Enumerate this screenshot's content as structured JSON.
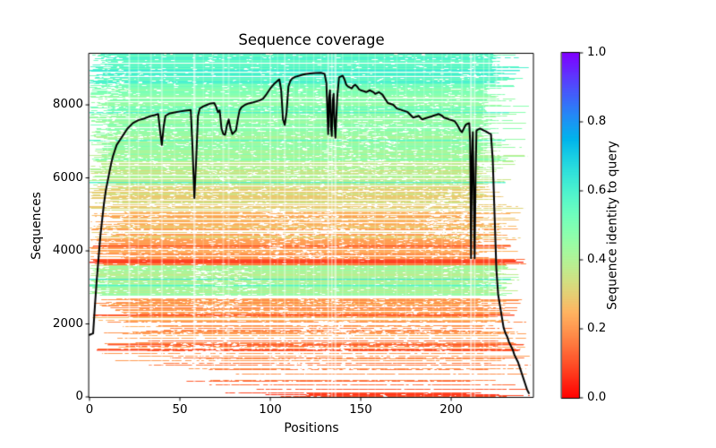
{
  "title": "Sequence coverage",
  "xlabel": "Positions",
  "ylabel": "Sequences",
  "colorbar_label": "Sequence identity to query",
  "chart_data": {
    "type": "line",
    "title": "Sequence coverage",
    "xlabel": "Positions",
    "ylabel": "Sequences",
    "xlim": [
      0,
      245
    ],
    "ylim": [
      0,
      9400
    ],
    "grid": false,
    "x_ticks": [
      {
        "v": 0,
        "label": "0"
      },
      {
        "v": 50,
        "label": "50"
      },
      {
        "v": 100,
        "label": "100"
      },
      {
        "v": 150,
        "label": "150"
      },
      {
        "v": 200,
        "label": "200"
      }
    ],
    "y_ticks": [
      {
        "v": 0,
        "label": "0"
      },
      {
        "v": 2000,
        "label": "2000"
      },
      {
        "v": 4000,
        "label": "4000"
      },
      {
        "v": 6000,
        "label": "6000"
      },
      {
        "v": 8000,
        "label": "8000"
      }
    ],
    "colorbar": {
      "label": "Sequence identity to query",
      "min": 0.0,
      "max": 1.0,
      "ticks": [
        {
          "v": 0.0,
          "label": "0.0"
        },
        {
          "v": 0.2,
          "label": "0.2"
        },
        {
          "v": 0.4,
          "label": "0.4"
        },
        {
          "v": 0.6,
          "label": "0.6"
        },
        {
          "v": 0.8,
          "label": "0.8"
        },
        {
          "v": 1.0,
          "label": "1.0"
        }
      ],
      "colormap": "rainbow_r",
      "anchor_colors": {
        "0.0": "#ff0000",
        "0.2": "#ffa255",
        "0.4": "#a8f79c",
        "0.6": "#57f7c9",
        "0.8": "#1a96f3",
        "1.0": "#8000ff"
      }
    },
    "coverage_line": {
      "name": "coverage",
      "color": "#000000",
      "line_width": 2,
      "points": [
        [
          0,
          1700
        ],
        [
          1,
          1720
        ],
        [
          2,
          1740
        ],
        [
          3,
          2500
        ],
        [
          4,
          3200
        ],
        [
          5,
          3800
        ],
        [
          6,
          4400
        ],
        [
          7,
          4850
        ],
        [
          8,
          5300
        ],
        [
          9,
          5650
        ],
        [
          10,
          5900
        ],
        [
          11,
          6150
        ],
        [
          12,
          6400
        ],
        [
          13,
          6600
        ],
        [
          14,
          6750
        ],
        [
          15,
          6900
        ],
        [
          17,
          7050
        ],
        [
          19,
          7200
        ],
        [
          21,
          7350
        ],
        [
          24,
          7500
        ],
        [
          27,
          7580
        ],
        [
          30,
          7620
        ],
        [
          33,
          7680
        ],
        [
          36,
          7720
        ],
        [
          38,
          7750
        ],
        [
          39,
          7300
        ],
        [
          40,
          6900
        ],
        [
          41,
          7400
        ],
        [
          42,
          7700
        ],
        [
          44,
          7760
        ],
        [
          47,
          7790
        ],
        [
          50,
          7820
        ],
        [
          53,
          7840
        ],
        [
          56,
          7860
        ],
        [
          57,
          6800
        ],
        [
          58,
          5450
        ],
        [
          59,
          6500
        ],
        [
          60,
          7700
        ],
        [
          61,
          7900
        ],
        [
          63,
          7960
        ],
        [
          65,
          8000
        ],
        [
          67,
          8040
        ],
        [
          69,
          8050
        ],
        [
          70,
          7950
        ],
        [
          71,
          7800
        ],
        [
          72,
          7850
        ],
        [
          73,
          7350
        ],
        [
          74,
          7200
        ],
        [
          75,
          7180
        ],
        [
          76,
          7440
        ],
        [
          77,
          7600
        ],
        [
          78,
          7350
        ],
        [
          79,
          7200
        ],
        [
          80,
          7250
        ],
        [
          81,
          7300
        ],
        [
          82,
          7600
        ],
        [
          83,
          7850
        ],
        [
          84,
          7930
        ],
        [
          86,
          8000
        ],
        [
          88,
          8040
        ],
        [
          90,
          8060
        ],
        [
          92,
          8090
        ],
        [
          94,
          8120
        ],
        [
          96,
          8170
        ],
        [
          98,
          8300
        ],
        [
          100,
          8450
        ],
        [
          102,
          8570
        ],
        [
          104,
          8660
        ],
        [
          105,
          8700
        ],
        [
          106,
          8400
        ],
        [
          107,
          7600
        ],
        [
          108,
          7450
        ],
        [
          109,
          7800
        ],
        [
          110,
          8500
        ],
        [
          111,
          8650
        ],
        [
          112,
          8720
        ],
        [
          114,
          8770
        ],
        [
          116,
          8800
        ],
        [
          118,
          8830
        ],
        [
          120,
          8850
        ],
        [
          122,
          8860
        ],
        [
          125,
          8875
        ],
        [
          128,
          8880
        ],
        [
          130,
          8850
        ],
        [
          131,
          8600
        ],
        [
          132,
          7200
        ],
        [
          132.5,
          8200
        ],
        [
          133,
          8400
        ],
        [
          133.5,
          7400
        ],
        [
          134,
          7150
        ],
        [
          134.5,
          8100
        ],
        [
          135,
          8300
        ],
        [
          135.5,
          7500
        ],
        [
          136,
          7100
        ],
        [
          137,
          8200
        ],
        [
          138,
          8750
        ],
        [
          140,
          8800
        ],
        [
          141,
          8700
        ],
        [
          142,
          8550
        ],
        [
          143,
          8500
        ],
        [
          144,
          8480
        ],
        [
          145,
          8450
        ],
        [
          146,
          8520
        ],
        [
          147,
          8550
        ],
        [
          148,
          8500
        ],
        [
          149,
          8430
        ],
        [
          150,
          8400
        ],
        [
          152,
          8370
        ],
        [
          153,
          8350
        ],
        [
          155,
          8400
        ],
        [
          157,
          8350
        ],
        [
          158,
          8300
        ],
        [
          160,
          8350
        ],
        [
          162,
          8280
        ],
        [
          163,
          8200
        ],
        [
          165,
          8050
        ],
        [
          167,
          8020
        ],
        [
          168,
          8000
        ],
        [
          169,
          7950
        ],
        [
          170,
          7900
        ],
        [
          172,
          7870
        ],
        [
          173,
          7850
        ],
        [
          175,
          7820
        ],
        [
          176,
          7800
        ],
        [
          178,
          7700
        ],
        [
          179,
          7650
        ],
        [
          181,
          7680
        ],
        [
          182,
          7700
        ],
        [
          184,
          7600
        ],
        [
          185,
          7620
        ],
        [
          187,
          7650
        ],
        [
          189,
          7680
        ],
        [
          190,
          7700
        ],
        [
          192,
          7730
        ],
        [
          193,
          7750
        ],
        [
          195,
          7700
        ],
        [
          196,
          7650
        ],
        [
          198,
          7620
        ],
        [
          199,
          7600
        ],
        [
          201,
          7570
        ],
        [
          202,
          7550
        ],
        [
          203,
          7480
        ],
        [
          204,
          7400
        ],
        [
          205,
          7300
        ],
        [
          206,
          7250
        ],
        [
          207,
          7350
        ],
        [
          208,
          7450
        ],
        [
          209,
          7480
        ],
        [
          210,
          7500
        ],
        [
          210.5,
          7000
        ],
        [
          211,
          3800
        ],
        [
          211.5,
          6500
        ],
        [
          212,
          7250
        ],
        [
          212.5,
          5500
        ],
        [
          213,
          3800
        ],
        [
          213.5,
          6000
        ],
        [
          214,
          7300
        ],
        [
          215,
          7330
        ],
        [
          216,
          7350
        ],
        [
          217,
          7330
        ],
        [
          218,
          7300
        ],
        [
          219,
          7280
        ],
        [
          220,
          7250
        ],
        [
          221,
          7220
        ],
        [
          222,
          7200
        ],
        [
          223,
          6500
        ],
        [
          224,
          5000
        ],
        [
          225,
          3500
        ],
        [
          226,
          2800
        ],
        [
          227,
          2500
        ],
        [
          228,
          2200
        ],
        [
          229,
          1900
        ],
        [
          230,
          1750
        ],
        [
          231,
          1650
        ],
        [
          232,
          1500
        ],
        [
          233,
          1400
        ],
        [
          234,
          1300
        ],
        [
          235,
          1150
        ],
        [
          236,
          1050
        ],
        [
          237,
          950
        ],
        [
          238,
          800
        ],
        [
          239,
          650
        ],
        [
          240,
          500
        ],
        [
          241,
          350
        ],
        [
          242,
          200
        ],
        [
          243,
          100
        ]
      ]
    },
    "msa_bands": [
      {
        "v0": 0,
        "v1": 120,
        "id0": 0.05,
        "id1": 0.12,
        "density": 0.85,
        "s0": 95,
        "s1": 125,
        "sp": 1,
        "e0": 140,
        "e1": 245,
        "ep": 0.3,
        "gap": 0.02
      },
      {
        "v0": 120,
        "v1": 300,
        "id0": 0.08,
        "id1": 0.18,
        "density": 0.42,
        "s0": 55,
        "s1": 115,
        "sp": 1,
        "e0": 150,
        "e1": 245,
        "ep": 0.3,
        "gap": 0.03
      },
      {
        "v0": 300,
        "v1": 700,
        "id0": 0.1,
        "id1": 0.2,
        "density": 0.42,
        "s0": 25,
        "s1": 95,
        "sp": 1,
        "e0": 170,
        "e1": 245,
        "ep": 0.3,
        "gap": 0.035
      },
      {
        "v0": 700,
        "v1": 1200,
        "id0": 0.12,
        "id1": 0.22,
        "density": 0.48,
        "s0": 12,
        "s1": 70,
        "sp": 1,
        "e0": 185,
        "e1": 245,
        "ep": 0.3,
        "gap": 0.04
      },
      {
        "v0": 1200,
        "v1": 2050,
        "id0": 0.13,
        "id1": 0.25,
        "density": 0.58,
        "s0": 3,
        "s1": 45,
        "sp": 1.2,
        "e0": 200,
        "e1": 245,
        "ep": 0.4,
        "gap": 0.045
      },
      {
        "v0": 2050,
        "v1": 2780,
        "id0": 0.16,
        "id1": 0.28,
        "density": 0.78,
        "s0": 0,
        "s1": 28,
        "sp": 1.4,
        "e0": 212,
        "e1": 243,
        "ep": 1,
        "gap": 0.04
      },
      {
        "v0": 2780,
        "v1": 3620,
        "id0": 0.37,
        "id1": 0.46,
        "density": 0.96,
        "s0": 0,
        "s1": 12,
        "sp": 3,
        "e0": 218,
        "e1": 238,
        "ep": 1,
        "gap": 0.02
      },
      {
        "v0": 3620,
        "v1": 3790,
        "id0": 0.1,
        "id1": 0.18,
        "density": 0.97,
        "s0": 0,
        "s1": 8,
        "sp": 2,
        "e0": 220,
        "e1": 242,
        "ep": 1,
        "gap": 0.015
      },
      {
        "v0": 3790,
        "v1": 4350,
        "id0": 0.16,
        "id1": 0.26,
        "density": 0.85,
        "s0": 0,
        "s1": 20,
        "sp": 1.6,
        "e0": 210,
        "e1": 240,
        "ep": 1.5,
        "gap": 0.045
      },
      {
        "v0": 4350,
        "v1": 5100,
        "id0": 0.2,
        "id1": 0.31,
        "density": 0.86,
        "s0": 0,
        "s1": 20,
        "sp": 1.6,
        "e0": 210,
        "e1": 240,
        "ep": 1.5,
        "gap": 0.045
      },
      {
        "v0": 5100,
        "v1": 5800,
        "id0": 0.27,
        "id1": 0.37,
        "density": 0.88,
        "s0": 0,
        "s1": 16,
        "sp": 1.8,
        "e0": 212,
        "e1": 241,
        "ep": 2.2,
        "gap": 0.04
      },
      {
        "v0": 5800,
        "v1": 6500,
        "id0": 0.32,
        "id1": 0.43,
        "density": 0.9,
        "s0": 0,
        "s1": 15,
        "sp": 1.8,
        "e0": 214,
        "e1": 242,
        "ep": 2.2,
        "gap": 0.035
      },
      {
        "v0": 6500,
        "v1": 7400,
        "id0": 0.38,
        "id1": 0.5,
        "density": 0.92,
        "s0": 0,
        "s1": 13,
        "sp": 1.8,
        "e0": 216,
        "e1": 243,
        "ep": 2.2,
        "gap": 0.03
      },
      {
        "v0": 7400,
        "v1": 8600,
        "id0": 0.43,
        "id1": 0.56,
        "density": 0.94,
        "s0": 0,
        "s1": 12,
        "sp": 1.9,
        "e0": 218,
        "e1": 244,
        "ep": 2.2,
        "gap": 0.025
      },
      {
        "v0": 8600,
        "v1": 9400,
        "id0": 0.52,
        "id1": 0.64,
        "density": 0.96,
        "s0": 0,
        "s1": 10,
        "sp": 2,
        "e0": 222,
        "e1": 245,
        "ep": 1.8,
        "gap": 0.02
      }
    ],
    "special_rows": [
      {
        "v": 3250,
        "identity": 0.62,
        "s": 0,
        "e": 233
      },
      {
        "v": 3060,
        "identity": 0.6,
        "s": 0,
        "e": 228
      },
      {
        "v": 5900,
        "identity": 0.6,
        "s": 0,
        "e": 230
      },
      {
        "v": 3700,
        "identity": 0.06,
        "s": 0,
        "e": 240
      },
      {
        "v": 3745,
        "identity": 0.08,
        "s": 2,
        "e": 236
      },
      {
        "v": 4150,
        "identity": 0.1,
        "s": 2,
        "e": 233
      },
      {
        "v": 1310,
        "identity": 0.08,
        "s": 4,
        "e": 238
      },
      {
        "v": 1460,
        "identity": 0.1,
        "s": 10,
        "e": 240
      },
      {
        "v": 2250,
        "identity": 0.09,
        "s": 2,
        "e": 235
      },
      {
        "v": 7050,
        "identity": 0.58,
        "s": 0,
        "e": 230
      },
      {
        "v": 7800,
        "identity": 0.6,
        "s": 0,
        "e": 232
      },
      {
        "v": 8950,
        "identity": 0.63,
        "s": 0,
        "e": 238
      }
    ],
    "gap_streaks": [
      [
        10,
        0.25,
        1.5
      ],
      [
        22,
        0.5,
        2
      ],
      [
        27,
        0.3,
        1.5
      ],
      [
        34,
        0.35,
        2
      ],
      [
        40,
        0.4,
        2
      ],
      [
        47,
        0.2,
        1.5
      ],
      [
        58,
        0.55,
        2.5
      ],
      [
        63,
        0.2,
        1.5
      ],
      [
        68,
        0.28,
        1.5
      ],
      [
        74,
        0.38,
        2
      ],
      [
        77,
        0.32,
        2
      ],
      [
        83,
        0.2,
        1.5
      ],
      [
        90,
        0.22,
        1.5
      ],
      [
        95,
        0.2,
        1.5
      ],
      [
        100,
        0.38,
        2
      ],
      [
        104,
        0.25,
        1.5
      ],
      [
        108,
        0.42,
        2
      ],
      [
        113,
        0.22,
        1.5
      ],
      [
        116,
        0.25,
        1.5
      ],
      [
        120,
        0.2,
        1.5
      ],
      [
        124,
        0.3,
        1.5
      ],
      [
        128,
        0.22,
        1.5
      ],
      [
        132,
        0.5,
        2
      ],
      [
        134,
        0.45,
        2
      ],
      [
        136,
        0.5,
        2.5
      ],
      [
        140,
        0.28,
        1.5
      ],
      [
        145,
        0.22,
        1.5
      ],
      [
        149,
        0.25,
        1.5
      ],
      [
        154,
        0.2,
        1.5
      ],
      [
        158,
        0.28,
        1.5
      ],
      [
        163,
        0.2,
        1.5
      ],
      [
        170,
        0.22,
        1.5
      ],
      [
        175,
        0.2,
        1.5
      ],
      [
        180,
        0.2,
        1.5
      ],
      [
        185,
        0.22,
        1.5
      ],
      [
        190,
        0.2,
        1.5
      ],
      [
        195,
        0.22,
        1.5
      ],
      [
        200,
        0.2,
        1.5
      ],
      [
        206,
        0.3,
        2
      ],
      [
        211,
        0.55,
        2.5
      ],
      [
        213,
        0.5,
        2
      ],
      [
        218,
        0.3,
        1.5
      ],
      [
        221,
        0.35,
        2
      ],
      [
        225,
        0.3,
        2
      ],
      [
        228,
        0.3,
        2
      ]
    ],
    "gap_clusters": [
      {
        "p0": 112,
        "p1": 146,
        "v0": 500,
        "v1": 2100,
        "n": 260
      },
      {
        "p0": 40,
        "p1": 85,
        "v0": 600,
        "v1": 1500,
        "n": 160
      },
      {
        "p0": 55,
        "p1": 90,
        "v0": 2100,
        "v1": 3500,
        "n": 140
      },
      {
        "p0": 150,
        "p1": 200,
        "v0": 900,
        "v1": 2000,
        "n": 140
      },
      {
        "p0": 95,
        "p1": 140,
        "v0": 3800,
        "v1": 5200,
        "n": 160
      },
      {
        "p0": 185,
        "p1": 215,
        "v0": 4300,
        "v1": 5600,
        "n": 120
      },
      {
        "p0": 130,
        "p1": 170,
        "v0": 6200,
        "v1": 7600,
        "n": 100
      },
      {
        "p0": 2,
        "p1": 20,
        "v0": 7000,
        "v1": 9390,
        "n": 140
      }
    ]
  }
}
